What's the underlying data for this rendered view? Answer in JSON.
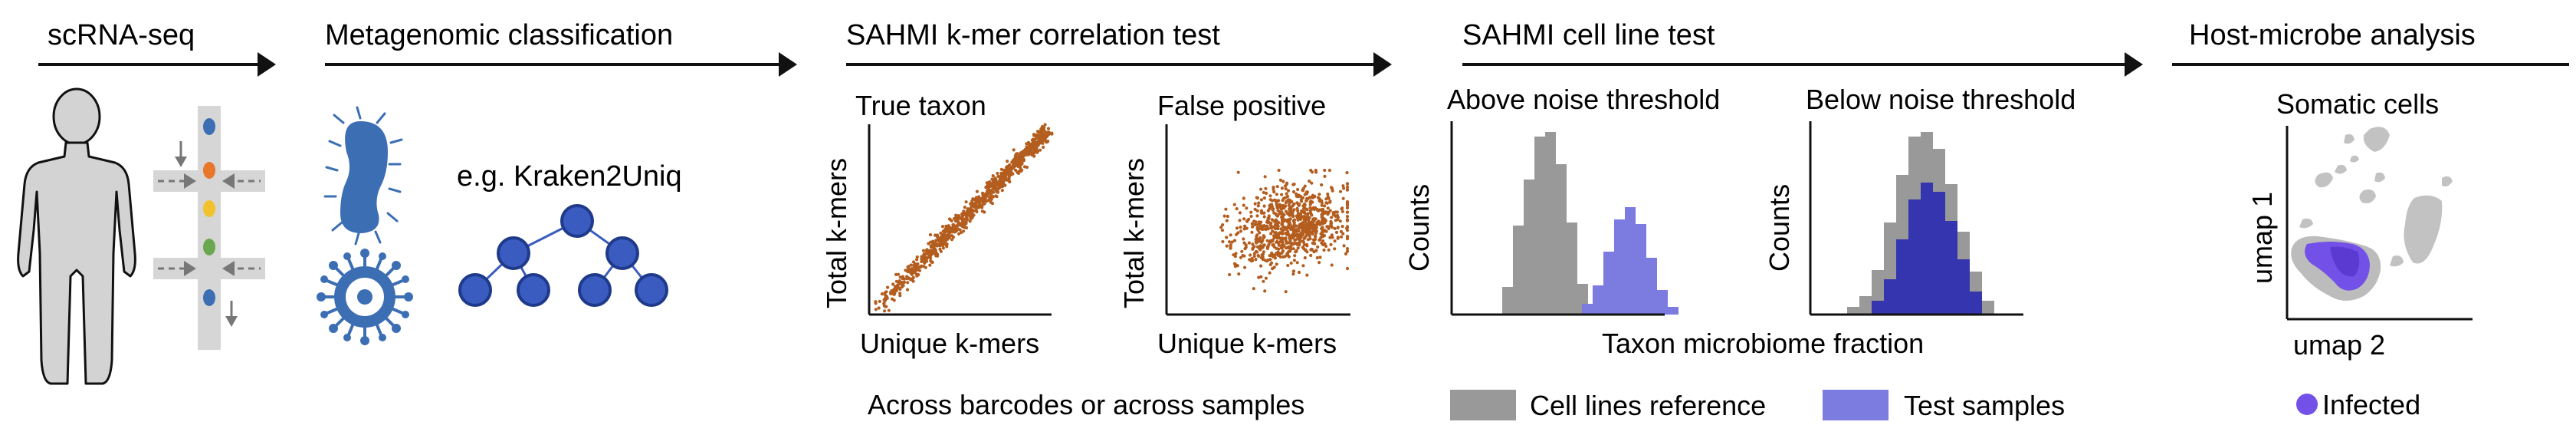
{
  "sections": {
    "scrna": {
      "title": "scRNA-seq"
    },
    "meta": {
      "title": "Metagenomic classification",
      "example": "e.g. Kraken2Uniq"
    },
    "kmer": {
      "title": "SAHMI k-mer correlation test",
      "true_panel": {
        "title": "True taxon",
        "xlabel": "Unique k-mers",
        "ylabel": "Total k-mers"
      },
      "false_panel": {
        "title": "False positive",
        "xlabel": "Unique k-mers",
        "ylabel": "Total k-mers"
      },
      "caption": "Across barcodes or across samples"
    },
    "cellline": {
      "title": "SAHMI cell line test",
      "above_panel": {
        "title": "Above noise threshold",
        "ylabel": "Counts"
      },
      "below_panel": {
        "title": "Below noise threshold",
        "ylabel": "Counts"
      },
      "xlabel": "Taxon microbiome fraction",
      "legend": {
        "reference": "Cell lines reference",
        "test": "Test samples"
      }
    },
    "host": {
      "title": "Host-microbe analysis",
      "panel_title": "Somatic cells",
      "xlabel": "umap 2",
      "ylabel": "umap 1",
      "legend": "Infected"
    }
  },
  "colors": {
    "arrow": "#111111",
    "microbe_blue": "#3c6eb4",
    "tree_node": "#3a5bbf",
    "kmer_points": "#b35d1f",
    "reference_bars": "#999999",
    "test_bars": "#7b7be0",
    "test_bars_overlap": "#3535b0",
    "infected": "#7350e8",
    "umap_grey": "#bdbdbd",
    "person": "#d3d3d3",
    "chip": "#d6d6d6"
  }
}
